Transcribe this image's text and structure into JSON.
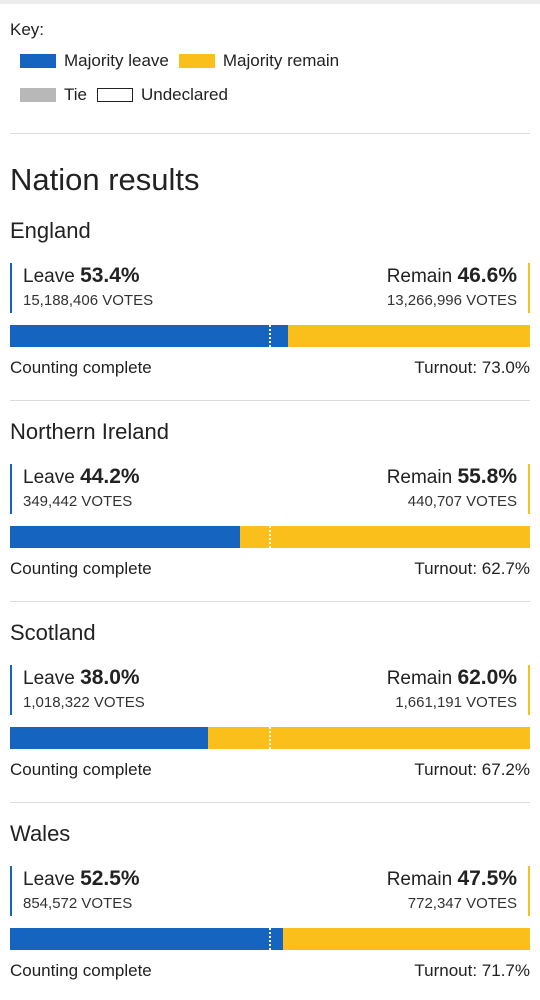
{
  "key": {
    "title": "Key:",
    "items": [
      {
        "label": "Majority leave",
        "color": "#1565c0"
      },
      {
        "label": "Majority remain",
        "color": "#fbbf1c"
      },
      {
        "label": "Tie",
        "color": "#b8b8b8"
      },
      {
        "label": "Undeclared",
        "color": "#ffffff"
      }
    ]
  },
  "section_title": "Nation results",
  "labels": {
    "leave": "Leave",
    "remain": "Remain",
    "turnout_prefix": "Turnout:"
  },
  "nations": [
    {
      "name": "England",
      "leave_pct": "53.4%",
      "leave_votes": "15,188,406 VOTES",
      "remain_pct": "46.6%",
      "remain_votes": "13,266,996 VOTES",
      "leave_share": 0.534,
      "status": "Counting complete",
      "turnout": "Turnout: 73.0%"
    },
    {
      "name": "Northern Ireland",
      "leave_pct": "44.2%",
      "leave_votes": "349,442 VOTES",
      "remain_pct": "55.8%",
      "remain_votes": "440,707 VOTES",
      "leave_share": 0.442,
      "status": "Counting complete",
      "turnout": "Turnout: 62.7%"
    },
    {
      "name": "Scotland",
      "leave_pct": "38.0%",
      "leave_votes": "1,018,322 VOTES",
      "remain_pct": "62.0%",
      "remain_votes": "1,661,191 VOTES",
      "leave_share": 0.38,
      "status": "Counting complete",
      "turnout": "Turnout: 67.2%"
    },
    {
      "name": "Wales",
      "leave_pct": "52.5%",
      "leave_votes": "854,572 VOTES",
      "remain_pct": "47.5%",
      "remain_votes": "772,347 VOTES",
      "leave_share": 0.525,
      "status": "Counting complete",
      "turnout": "Turnout: 71.7%"
    }
  ]
}
